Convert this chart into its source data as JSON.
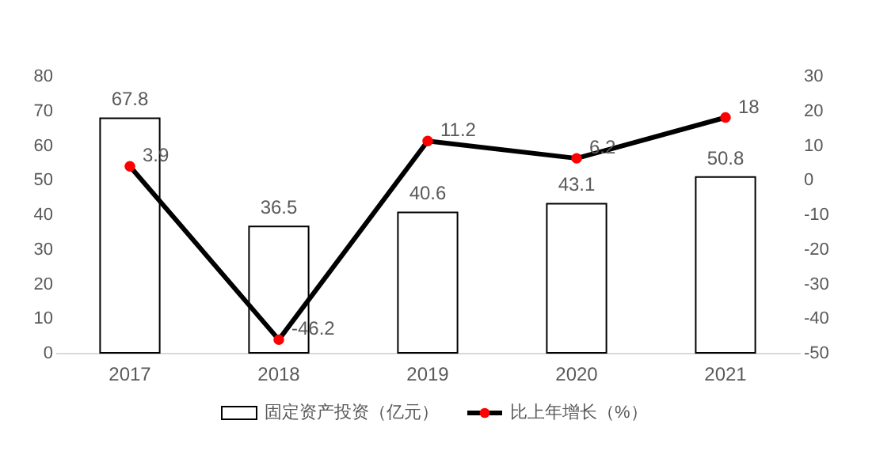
{
  "chart_data": {
    "type": "bar",
    "categories": [
      "2017",
      "2018",
      "2019",
      "2020",
      "2021"
    ],
    "series": [
      {
        "name": "固定资产投资（亿元）",
        "color": "#ffffff",
        "values": [
          67.8,
          36.5,
          40.6,
          43.1,
          50.8
        ]
      },
      {
        "name": "比上年增长（%）",
        "type": "line",
        "axis": "y2",
        "color": "#000000",
        "colors": [
          "#ff0000",
          "#ff0000",
          "#ff0000",
          "#ff0000",
          "#ff0000"
        ],
        "values": [
          3.9,
          -46.2,
          11.2,
          6.2,
          18
        ]
      }
    ],
    "ylim": [
      0,
      80
    ],
    "yticks": [
      0,
      10,
      20,
      30,
      40,
      50,
      60,
      70,
      80
    ],
    "y2lim": [
      -50,
      30
    ],
    "y2ticks": [
      -50,
      -40,
      -30,
      -20,
      -10,
      0,
      10,
      20,
      30
    ],
    "data_labels": true,
    "marker": "circle",
    "line_style": "solid",
    "grid": false,
    "legend": "bottom"
  }
}
